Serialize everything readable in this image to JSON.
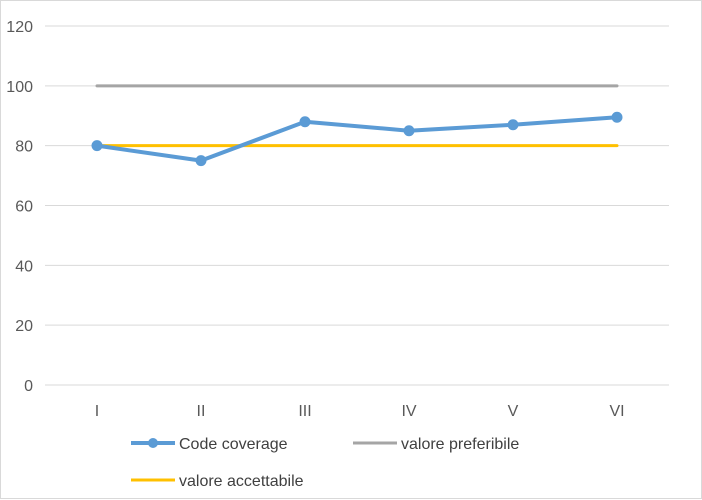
{
  "chart_data": {
    "type": "line",
    "title": "",
    "xlabel": "",
    "ylabel": "",
    "ylim": [
      0,
      120
    ],
    "yticks": [
      0,
      20,
      40,
      60,
      80,
      100,
      120
    ],
    "grid": true,
    "legend_position": "bottom",
    "categories": [
      "I",
      "II",
      "III",
      "IV",
      "V",
      "VI"
    ],
    "series": [
      {
        "name": "Code coverage",
        "values": [
          80,
          75,
          88,
          85,
          87,
          89.5
        ],
        "color": "#5b9bd5",
        "markers": true
      },
      {
        "name": "valore preferibile",
        "values": [
          100,
          100,
          100,
          100,
          100,
          100
        ],
        "color": "#a5a5a5",
        "markers": false
      },
      {
        "name": "valore accettabile",
        "values": [
          80,
          80,
          80,
          80,
          80,
          80
        ],
        "color": "#ffc000",
        "markers": false
      }
    ]
  }
}
